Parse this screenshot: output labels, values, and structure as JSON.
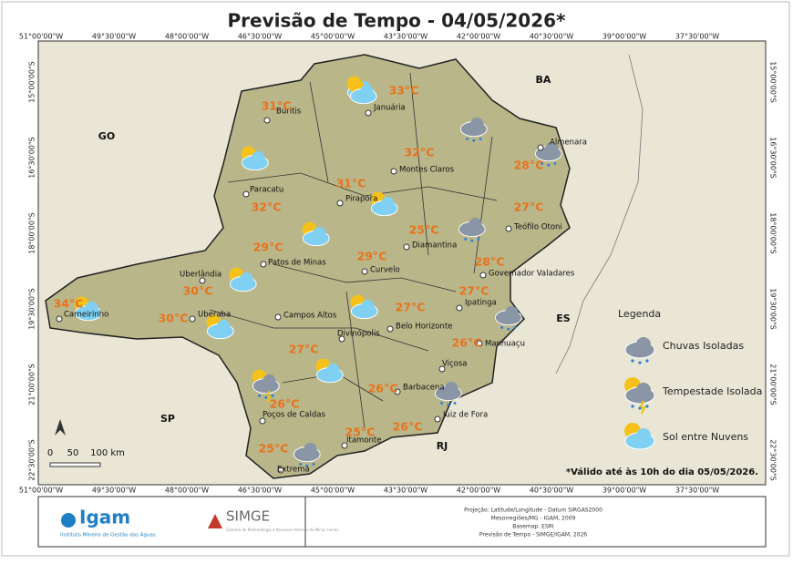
{
  "title": "Previsão de Tempo - 04/05/2026*",
  "lon_labels": [
    "51°00'00\"W",
    "49°30'00\"W",
    "48°00'00\"W",
    "46°30'00\"W",
    "45°00'00\"W",
    "43°30'00\"W",
    "42°00'00\"W",
    "40°30'00\"W",
    "39°00'00\"W",
    "37°30'00\"W"
  ],
  "lat_labels": [
    "15°00'00\"S",
    "16°30'00\"S",
    "18°00'00\"S",
    "19°30'00\"S",
    "21°00'00\"S",
    "22°30'00\"S"
  ],
  "states": [
    "GO",
    "BA",
    "ES",
    "SP",
    "RJ"
  ],
  "cities": [
    {
      "name": "Buritis",
      "temp": "31°C"
    },
    {
      "name": "Januária",
      "temp": "33°C"
    },
    {
      "name": "Almenara",
      "temp": "28°C"
    },
    {
      "name": "Montes Claros",
      "temp": "32°C"
    },
    {
      "name": "Paracatu",
      "temp": "32°C"
    },
    {
      "name": "Pirapora",
      "temp": "31°C"
    },
    {
      "name": "Teófilo Otoni",
      "temp": "27°C"
    },
    {
      "name": "Diamantina",
      "temp": "25°C"
    },
    {
      "name": "Patos de Minas",
      "temp": "29°C"
    },
    {
      "name": "Curvelo",
      "temp": "29°C"
    },
    {
      "name": "Governador Valadares",
      "temp": "28°C"
    },
    {
      "name": "Uberlândia",
      "temp": "30°C"
    },
    {
      "name": "Ipatinga",
      "temp": "27°C"
    },
    {
      "name": "Carneirinho",
      "temp": "34°C"
    },
    {
      "name": "Uberaba",
      "temp": "30°C"
    },
    {
      "name": "Campos Altos"
    },
    {
      "name": "Belo Horizonte",
      "temp": "27°C"
    },
    {
      "name": "Divinópolis",
      "temp": "27°C"
    },
    {
      "name": "Manhuaçu",
      "temp": "26°C"
    },
    {
      "name": "Viçosa"
    },
    {
      "name": "Barbacena",
      "temp": "26°C"
    },
    {
      "name": "Poços de Caldas",
      "temp": "26°C"
    },
    {
      "name": "Juiz de Fora",
      "temp": "26°C"
    },
    {
      "name": "Itamonte",
      "temp": "25°C"
    },
    {
      "name": "Extrema",
      "temp": "25°C"
    }
  ],
  "legend": {
    "title": "Legenda",
    "items": [
      "Chuvas Isoladas",
      "Tempestade Isolada",
      "Sol entre Nuvens"
    ]
  },
  "scale": [
    "0",
    "50",
    "100 km"
  ],
  "note": "*Válido até às 10h do dia 05/05/2026.",
  "footer": {
    "igam": "Igam",
    "igam_sub": "Instituto Mineiro de Gestão das Águas",
    "simge": "SIMGE",
    "simge_sub": "Sistema de Meteorologia e Recursos Hídricos de Minas Gerais",
    "credits": [
      "Projeção: Latitude/Longitude - Datum SIRGAS2000",
      "Mesorregiões/MG - IGAM, 2009",
      "Basemap: ESRI",
      "Previsão de Tempo - SIMGE/IGAM, 2026"
    ]
  }
}
